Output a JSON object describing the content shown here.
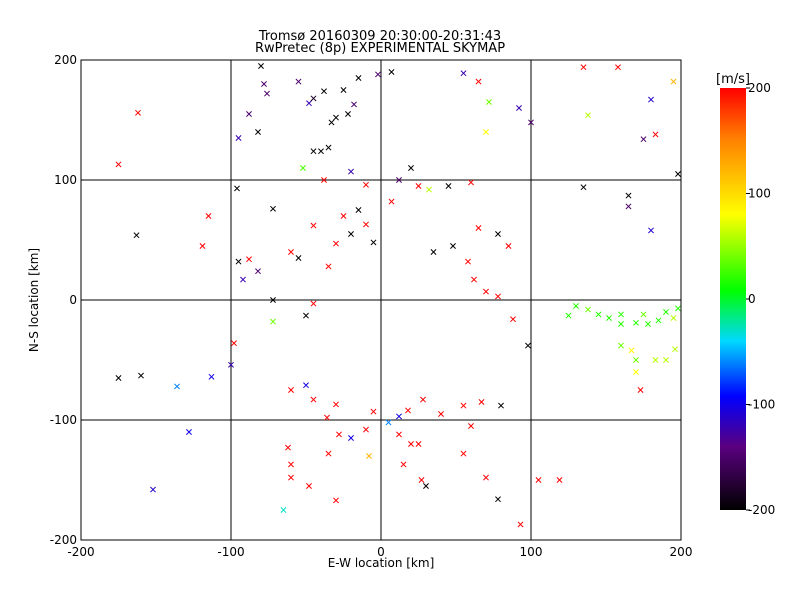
{
  "chart_data": {
    "type": "scatter",
    "title": "Tromsø 20160309 20:30:00-20:31:43",
    "subtitle": "RwPretec (8p) EXPERIMENTAL SKYMAP",
    "xlabel": "E-W location [km]",
    "ylabel": "N-S location [km]",
    "xlim": [
      -200,
      200
    ],
    "ylim": [
      -200,
      200
    ],
    "xticks": [
      -200,
      -100,
      0,
      100,
      200
    ],
    "yticks": [
      -200,
      -100,
      0,
      100,
      200
    ],
    "grid": true,
    "colorbar": {
      "label": "[m/s]",
      "min": -200,
      "max": 200,
      "ticks": [
        -200,
        -100,
        0,
        100,
        200
      ],
      "colormap": [
        "#000000",
        "#5a007f",
        "#0000ff",
        "#00d8ff",
        "#00ff00",
        "#ffff00",
        "#ff0000"
      ]
    },
    "marker_types": [
      "x (detected)",
      "dot"
    ],
    "points": [
      [
        -162,
        156,
        200,
        "x"
      ],
      [
        -175,
        113,
        200,
        "x"
      ],
      [
        -163,
        54,
        -200,
        "x"
      ],
      [
        -119,
        45,
        200,
        "x"
      ],
      [
        -115,
        70,
        200,
        "x"
      ],
      [
        -96,
        93,
        -200,
        "x"
      ],
      [
        -95,
        135,
        -120,
        "x"
      ],
      [
        -82,
        140,
        -200,
        "x"
      ],
      [
        -88,
        155,
        -150,
        "x"
      ],
      [
        -78,
        180,
        -150,
        "x"
      ],
      [
        -76,
        172,
        -150,
        "x"
      ],
      [
        -80,
        195,
        -200,
        "x"
      ],
      [
        -55,
        182,
        -150,
        "x"
      ],
      [
        -48,
        164,
        -120,
        "x"
      ],
      [
        -45,
        168,
        -180,
        "x"
      ],
      [
        -38,
        174,
        -200,
        "x"
      ],
      [
        -33,
        148,
        -200,
        "x"
      ],
      [
        -30,
        152,
        -200,
        "x"
      ],
      [
        -25,
        175,
        -200,
        "x"
      ],
      [
        -22,
        155,
        -200,
        "x"
      ],
      [
        -18,
        163,
        -150,
        "x"
      ],
      [
        -15,
        185,
        -200,
        "x"
      ],
      [
        -2,
        188,
        -150,
        "x"
      ],
      [
        7,
        190,
        -200,
        "x"
      ],
      [
        -52,
        110,
        30,
        "x"
      ],
      [
        -45,
        124,
        -200,
        "x"
      ],
      [
        -40,
        124,
        -200,
        "x"
      ],
      [
        -35,
        127,
        -200,
        "x"
      ],
      [
        55,
        189,
        -120,
        "x"
      ],
      [
        65,
        182,
        200,
        "x"
      ],
      [
        72,
        165,
        40,
        "x"
      ],
      [
        70,
        140,
        80,
        "x"
      ],
      [
        92,
        160,
        -120,
        "x"
      ],
      [
        100,
        148,
        -150,
        "x"
      ],
      [
        135,
        194,
        200,
        "x"
      ],
      [
        158,
        194,
        200,
        "x"
      ],
      [
        180,
        167,
        -110,
        "x"
      ],
      [
        195,
        182,
        120,
        "x"
      ],
      [
        175,
        134,
        -150,
        "x"
      ],
      [
        183,
        138,
        200,
        "x"
      ],
      [
        138,
        154,
        60,
        "x"
      ],
      [
        135,
        94,
        -200,
        "x"
      ],
      [
        165,
        87,
        -200,
        "x"
      ],
      [
        165,
        78,
        -150,
        "x"
      ],
      [
        180,
        58,
        -110,
        "x"
      ],
      [
        198,
        105,
        -200,
        "x"
      ],
      [
        20,
        110,
        -200,
        "x"
      ],
      [
        25,
        95,
        200,
        "x"
      ],
      [
        -88,
        34,
        200,
        "x"
      ],
      [
        -95,
        32,
        -200,
        "x"
      ],
      [
        -92,
        17,
        -120,
        "x"
      ],
      [
        -82,
        24,
        -150,
        "x"
      ],
      [
        -72,
        76,
        -200,
        "x"
      ],
      [
        -60,
        40,
        200,
        "x"
      ],
      [
        -72,
        0,
        -200,
        "x"
      ],
      [
        -72,
        -18,
        40,
        "x"
      ],
      [
        -50,
        -13,
        -200,
        "x"
      ],
      [
        -45,
        -3,
        200,
        "x"
      ],
      [
        -98,
        -36,
        200,
        "x"
      ],
      [
        -100,
        -54,
        -120,
        "x"
      ],
      [
        -113,
        -64,
        -100,
        "x"
      ],
      [
        -175,
        -65,
        -200,
        "x"
      ],
      [
        -160,
        -63,
        -200,
        "x"
      ],
      [
        -136,
        -72,
        -60,
        "x"
      ],
      [
        -128,
        -110,
        -100,
        "x"
      ],
      [
        -152,
        -158,
        -110,
        "x"
      ],
      [
        -60,
        -75,
        200,
        "x"
      ],
      [
        -50,
        -71,
        -100,
        "x"
      ],
      [
        -45,
        -83,
        200,
        "x"
      ],
      [
        -36,
        -98,
        200,
        "x"
      ],
      [
        -30,
        -87,
        200,
        "x"
      ],
      [
        -28,
        -112,
        200,
        "x"
      ],
      [
        -62,
        -123,
        200,
        "x"
      ],
      [
        -60,
        -148,
        200,
        "x"
      ],
      [
        -48,
        -155,
        200,
        "x"
      ],
      [
        -35,
        -128,
        200,
        "x"
      ],
      [
        -65,
        -175,
        -30,
        "x"
      ],
      [
        -30,
        -167,
        200,
        "x"
      ],
      [
        -60,
        -137,
        200,
        "x"
      ],
      [
        15,
        -137,
        200,
        "x"
      ],
      [
        25,
        -120,
        200,
        "x"
      ],
      [
        40,
        -95,
        200,
        "x"
      ],
      [
        55,
        -88,
        200,
        "x"
      ],
      [
        67,
        -85,
        200,
        "x"
      ],
      [
        80,
        -88,
        -200,
        "x"
      ],
      [
        60,
        -105,
        200,
        "x"
      ],
      [
        55,
        -128,
        200,
        "x"
      ],
      [
        70,
        -148,
        200,
        "x"
      ],
      [
        78,
        -166,
        -200,
        "x"
      ],
      [
        93,
        -187,
        200,
        "x"
      ],
      [
        119,
        -150,
        200,
        "x"
      ],
      [
        105,
        -150,
        200,
        "x"
      ],
      [
        27,
        -150,
        200,
        "x"
      ],
      [
        30,
        -155,
        -200,
        "x"
      ],
      [
        20,
        -120,
        200,
        "x"
      ],
      [
        12,
        -112,
        200,
        "x"
      ],
      [
        5,
        -102,
        -60,
        "x"
      ],
      [
        -10,
        -108,
        200,
        "x"
      ],
      [
        -20,
        -115,
        -100,
        "x"
      ],
      [
        -8,
        -130,
        120,
        "x"
      ],
      [
        12,
        -97,
        -100,
        "x"
      ],
      [
        18,
        -92,
        200,
        "x"
      ],
      [
        28,
        -83,
        200,
        "x"
      ],
      [
        -5,
        -93,
        200,
        "x"
      ],
      [
        173,
        -75,
        200,
        "x"
      ],
      [
        170,
        -60,
        80,
        "x"
      ],
      [
        170,
        -50,
        40,
        "x"
      ],
      [
        196,
        -41,
        60,
        "x"
      ],
      [
        183,
        -50,
        60,
        "x"
      ],
      [
        190,
        -50,
        60,
        "x"
      ],
      [
        167,
        -42,
        80,
        "x"
      ],
      [
        160,
        -38,
        40,
        "x"
      ],
      [
        195,
        -15,
        60,
        "x"
      ],
      [
        185,
        -17,
        20,
        "x"
      ],
      [
        178,
        -20,
        20,
        "x"
      ],
      [
        170,
        -19,
        20,
        "x"
      ],
      [
        160,
        -20,
        20,
        "x"
      ],
      [
        152,
        -15,
        20,
        "x"
      ],
      [
        145,
        -12,
        20,
        "x"
      ],
      [
        138,
        -8,
        40,
        "x"
      ],
      [
        130,
        -5,
        20,
        "x"
      ],
      [
        125,
        -13,
        20,
        "x"
      ],
      [
        160,
        -12,
        20,
        "x"
      ],
      [
        175,
        -12,
        40,
        "x"
      ],
      [
        190,
        -10,
        20,
        "x"
      ],
      [
        198,
        -7,
        20,
        "x"
      ],
      [
        98,
        -38,
        -200,
        "x"
      ],
      [
        88,
        -16,
        200,
        "x"
      ],
      [
        78,
        3,
        200,
        "x"
      ],
      [
        70,
        7,
        200,
        "x"
      ],
      [
        62,
        17,
        200,
        "x"
      ],
      [
        58,
        32,
        200,
        "x"
      ],
      [
        48,
        45,
        -200,
        "x"
      ],
      [
        35,
        40,
        -200,
        "x"
      ],
      [
        78,
        55,
        -200,
        "x"
      ],
      [
        65,
        60,
        200,
        "x"
      ],
      [
        85,
        45,
        200,
        "x"
      ],
      [
        -5,
        48,
        -200,
        "x"
      ],
      [
        -20,
        55,
        -200,
        "x"
      ],
      [
        -30,
        47,
        200,
        "x"
      ],
      [
        -35,
        28,
        200,
        "x"
      ],
      [
        -55,
        35,
        -200,
        "x"
      ],
      [
        -45,
        62,
        200,
        "x"
      ],
      [
        -25,
        70,
        200,
        "x"
      ],
      [
        -15,
        75,
        -200,
        "x"
      ],
      [
        -10,
        63,
        200,
        "x"
      ],
      [
        7,
        82,
        200,
        "x"
      ],
      [
        -38,
        100,
        200,
        "x"
      ],
      [
        -20,
        107,
        -120,
        "x"
      ],
      [
        -10,
        96,
        200,
        "x"
      ],
      [
        12,
        100,
        -150,
        "x"
      ],
      [
        45,
        95,
        -200,
        "x"
      ],
      [
        32,
        92,
        60,
        "x"
      ],
      [
        60,
        98,
        200,
        "x"
      ]
    ]
  }
}
